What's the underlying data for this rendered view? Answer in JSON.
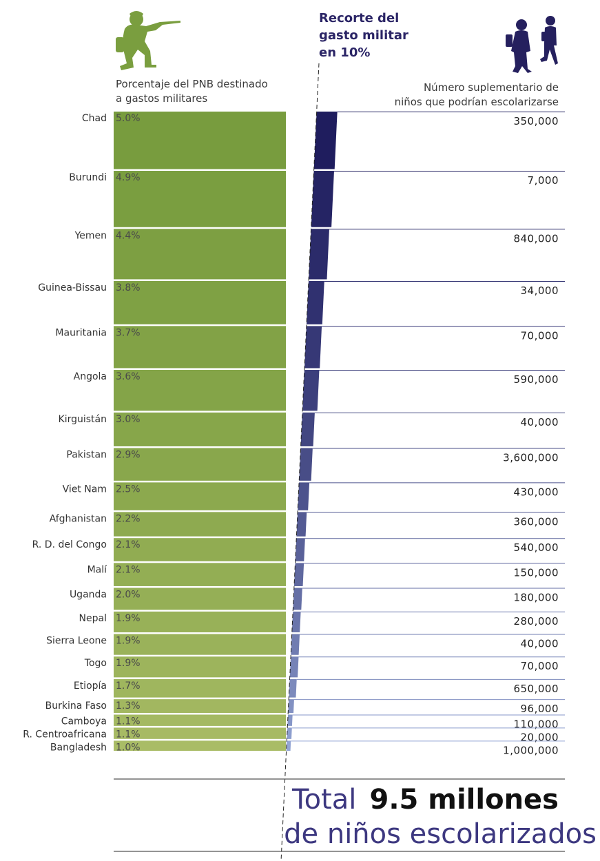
{
  "header": {
    "left_line1": "Porcentaje del PNB destinado",
    "left_line2": "a gastos militares",
    "mid_line1": "Recorte del",
    "mid_line2": "gasto militar",
    "mid_line3": "en 10%",
    "right_line1": "Número suplementario de",
    "right_line2": "niños que podrían escolarizarse"
  },
  "icons": {
    "soldier": "soldier-icon",
    "children": "children-icon"
  },
  "colors": {
    "green_dark": "#789c3e",
    "green_light": "#a9bc66",
    "navy_dark": "#1f1d5e",
    "navy_light": "#93a5d4",
    "title_navy": "#2b2566"
  },
  "total": {
    "label": "Total",
    "value": "9.5 millones",
    "line2": "de niños escolarizados"
  },
  "chart_data": {
    "type": "bar",
    "categories": [
      "Chad",
      "Burundi",
      "Yemen",
      "Guinea-Bissau",
      "Mauritania",
      "Angola",
      "Kirguistán",
      "Pakistan",
      "Viet Nam",
      "Afghanistan",
      "R. D. del Congo",
      "Malí",
      "Uganda",
      "Nepal",
      "Sierra Leone",
      "Togo",
      "Etiopía",
      "Burkina Faso",
      "Camboya",
      "R. Centroafricana",
      "Bangladesh"
    ],
    "series": [
      {
        "name": "Porcentaje del PNB destinado a gastos militares",
        "values": [
          5.0,
          4.9,
          4.4,
          3.8,
          3.7,
          3.6,
          3.0,
          2.9,
          2.5,
          2.2,
          2.1,
          2.1,
          2.0,
          1.9,
          1.9,
          1.9,
          1.7,
          1.3,
          1.1,
          1.1,
          1.0
        ],
        "labels": [
          "5.0%",
          "4.9%",
          "4.4%",
          "3.8%",
          "3.7%",
          "3.6%",
          "3.0%",
          "2.9%",
          "2.5%",
          "2.2%",
          "2.1%",
          "2.1%",
          "2.0%",
          "1.9%",
          "1.9%",
          "1.9%",
          "1.7%",
          "1.3%",
          "1.1%",
          "1.1%",
          "1.0%"
        ]
      },
      {
        "name": "Número suplementario de niños que podrían escolarizarse",
        "values": [
          350000,
          7000,
          840000,
          34000,
          70000,
          590000,
          40000,
          3600000,
          430000,
          360000,
          540000,
          150000,
          180000,
          280000,
          40000,
          70000,
          650000,
          96000,
          110000,
          20000,
          1000000
        ],
        "labels": [
          "350,000",
          "7,000",
          "840,000",
          "34,000",
          "70,000",
          "590,000",
          "40,000",
          "3,600,000",
          "430,000",
          "360,000",
          "540,000",
          "150,000",
          "180,000",
          "280,000",
          "40,000",
          "70,000",
          "650,000",
          "96,000",
          "110,000",
          "20,000",
          "1,000,000"
        ]
      }
    ],
    "title": "",
    "xlabel": "",
    "ylabel": ""
  }
}
